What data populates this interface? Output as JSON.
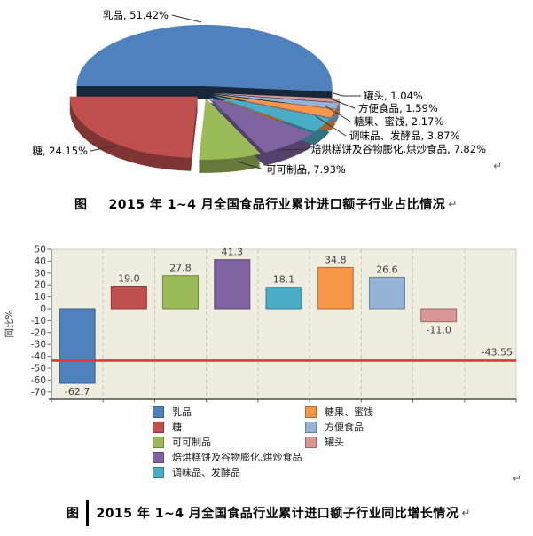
{
  "figure1": {
    "prefix": "图",
    "title": "2015 年 1~4 月全国食品行业累计进口额子行业占比情况",
    "return_mark": "↵"
  },
  "figure2": {
    "prefix": "图",
    "title": "2015 年 1~4 月全国食品行业累计进口额子行业同比增长情况",
    "return_mark": "↵"
  },
  "page_marks": {
    "after_pie": "↵",
    "after_legend": "↵"
  },
  "chart_data": [
    {
      "type": "pie",
      "style": "3d-exploded",
      "title": "2015 年 1~4 月全国食品行业累计进口额子行业占比情况",
      "unit": "%",
      "slices": [
        {
          "label": "乳品",
          "value": 51.42,
          "text": "乳品, 51.42%",
          "color": "#4F81BD"
        },
        {
          "label": "糖",
          "value": 24.15,
          "text": "糖, 24.15%",
          "color": "#C0504D"
        },
        {
          "label": "可可制品",
          "value": 7.93,
          "text": "可可制品, 7.93%",
          "color": "#9BBB59"
        },
        {
          "label": "焙烘糕饼及谷物膨化.烘炒食品",
          "value": 7.82,
          "text": "焙烘糕饼及谷物膨化.烘炒食品, 7.82%",
          "color": "#8064A2"
        },
        {
          "label": "调味品、发酵品",
          "value": 3.87,
          "text": "调味品、发酵品, 3.87%",
          "color": "#4BACC6"
        },
        {
          "label": "糖果、蜜饯",
          "value": 2.17,
          "text": "糖果、蜜饯, 2.17%",
          "color": "#F79646"
        },
        {
          "label": "方便食品",
          "value": 1.59,
          "text": "方便食品, 1.59%",
          "color": "#95B3D7"
        },
        {
          "label": "罐头",
          "value": 1.04,
          "text": "罐头, 1.04%",
          "color": "#D99694"
        }
      ]
    },
    {
      "type": "bar",
      "title": "2015 年 1~4 月全国食品行业累计进口额子行业同比增长情况",
      "ylabel": "同比%",
      "ylim": [
        -70,
        50
      ],
      "yticks": [
        "50",
        "40",
        "30",
        "20",
        "10",
        "0",
        "-10",
        "-20",
        "-30",
        "-40",
        "-50",
        "-60",
        "-70"
      ],
      "grid": "dashed-vertical",
      "plot_bg": "#EFEDE0",
      "categories": [
        "乳品",
        "糖",
        "可可制品",
        "焙烘糕饼及谷物膨化.烘炒食品",
        "调味品、发酵品",
        "糖果、蜜饯",
        "方便食品",
        "罐头"
      ],
      "values": [
        -62.7,
        19.0,
        27.8,
        41.3,
        18.1,
        34.8,
        26.6,
        -11.0
      ],
      "value_labels": [
        "-62.7",
        "19.0",
        "27.8",
        "41.3",
        "18.1",
        "34.8",
        "26.6",
        "-11.0"
      ],
      "colors": [
        "#4F81BD",
        "#C0504D",
        "#9BBB59",
        "#8064A2",
        "#4BACC6",
        "#F79646",
        "#95B3D7",
        "#D99694"
      ],
      "ref_line": {
        "value": -43.55,
        "label": "-43.55",
        "color": "#DE3A2D"
      },
      "legend_position": "bottom",
      "legend_columns": [
        [
          {
            "label": "乳品",
            "color": "#4F81BD"
          },
          {
            "label": "糖",
            "color": "#C0504D"
          },
          {
            "label": "可可制品",
            "color": "#9BBB59"
          },
          {
            "label": "焙烘糕饼及谷物膨化.烘炒食品",
            "color": "#8064A2"
          },
          {
            "label": "调味品、发酵品",
            "color": "#4BACC6"
          }
        ],
        [
          {
            "label": "糖果、蜜饯",
            "color": "#F79646"
          },
          {
            "label": "方便食品",
            "color": "#95B3D7"
          },
          {
            "label": "罐头",
            "color": "#D99694"
          }
        ]
      ]
    }
  ]
}
